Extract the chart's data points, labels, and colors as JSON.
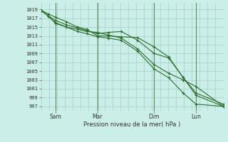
{
  "background_color": "#cceee8",
  "grid_color": "#aad4cc",
  "line_color": "#2d6e2d",
  "marker_color": "#2d6e2d",
  "ylabel_ticks": [
    997,
    999,
    1001,
    1003,
    1005,
    1007,
    1009,
    1011,
    1013,
    1015,
    1017,
    1019
  ],
  "ylim": [
    996,
    1020.5
  ],
  "xlabel": "Pression niveau de la mer( hPa )",
  "x_tick_labels": [
    "Sam",
    "Mar",
    "Dim",
    "Lun"
  ],
  "x_tick_positions": [
    0.08,
    0.31,
    0.62,
    0.85
  ],
  "xlim": [
    0.0,
    1.0
  ],
  "vline_positions": [
    0.08,
    0.31,
    0.62,
    0.85
  ],
  "series": [
    [
      1018.8,
      1018.0,
      1017.2,
      1016.2,
      1015.0,
      1014.5,
      1013.0,
      1013.0,
      1012.8,
      1012.6,
      1010.5,
      1008.2,
      1003.5,
      1000.0,
      997.5
    ],
    [
      1018.8,
      1017.5,
      1016.5,
      1015.5,
      1014.8,
      1014.2,
      1013.5,
      1013.8,
      1014.0,
      1012.0,
      1009.0,
      1008.0,
      1003.5,
      999.5,
      997.0
    ],
    [
      1018.8,
      1017.5,
      1016.0,
      1015.0,
      1014.5,
      1014.0,
      1013.8,
      1013.2,
      1012.5,
      1010.0,
      1006.5,
      1004.5,
      1003.0,
      1001.5,
      997.0
    ],
    [
      1018.8,
      1017.5,
      1015.8,
      1015.0,
      1014.0,
      1013.5,
      1012.8,
      1012.5,
      1012.0,
      1009.5,
      1005.5,
      1003.5,
      1000.0,
      997.5,
      997.0
    ]
  ],
  "x_positions": [
    0.0,
    0.04,
    0.08,
    0.14,
    0.2,
    0.25,
    0.31,
    0.37,
    0.44,
    0.53,
    0.62,
    0.7,
    0.78,
    0.85,
    1.0
  ]
}
